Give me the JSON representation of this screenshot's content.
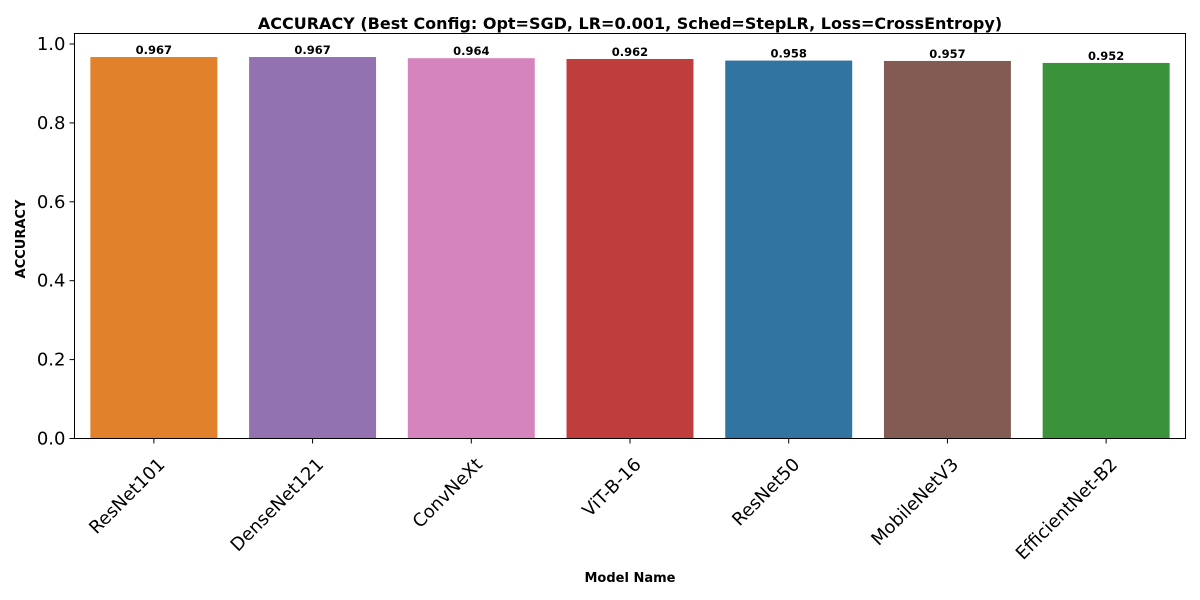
{
  "chart_data": {
    "type": "bar",
    "title": "ACCURACY (Best Config: Opt=SGD, LR=0.001, Sched=StepLR, Loss=CrossEntropy)",
    "xlabel": "Model Name",
    "ylabel": "ACCURACY",
    "categories": [
      "ResNet101",
      "DenseNet121",
      "ConvNeXt",
      "ViT-B-16",
      "ResNet50",
      "MobileNetV3",
      "EfficientNet-B2"
    ],
    "values": [
      0.967,
      0.967,
      0.964,
      0.962,
      0.958,
      0.957,
      0.952
    ],
    "data_labels": [
      "0.967",
      "0.967",
      "0.964",
      "0.962",
      "0.958",
      "0.957",
      "0.952"
    ],
    "colors": [
      "#e1812c",
      "#9372b2",
      "#d684bd",
      "#c03d3e",
      "#3274a1",
      "#845b53",
      "#3a923a"
    ],
    "ylim": [
      0,
      1.0
    ],
    "yticks": [
      0.0,
      0.2,
      0.4,
      0.6,
      0.8,
      1.0
    ],
    "ytick_labels": [
      "0.0",
      "0.2",
      "0.4",
      "0.6",
      "0.8",
      "1.0"
    ],
    "grid": false,
    "legend": "none"
  }
}
